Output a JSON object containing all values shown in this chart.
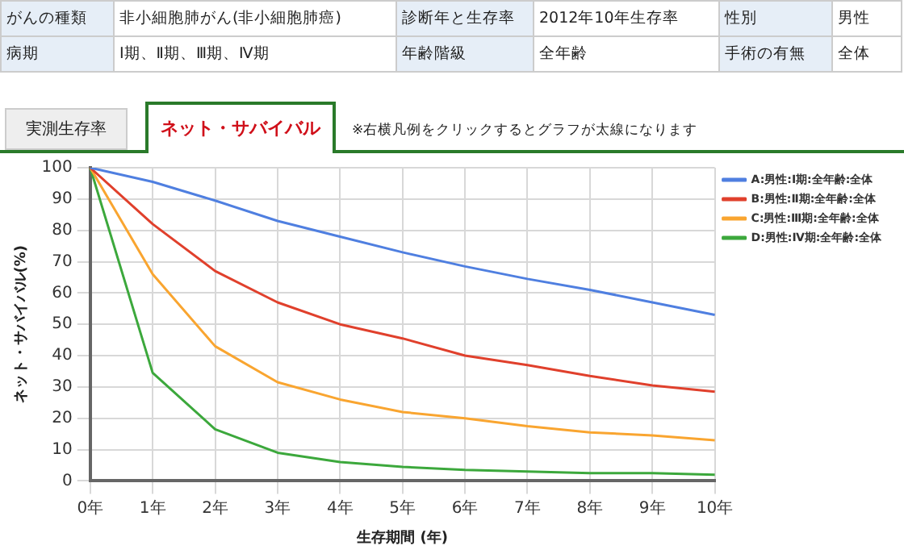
{
  "chart_data": {
    "type": "line",
    "xlabel": "生存期間 (年)",
    "ylabel": "ネット・サバイバル(%)",
    "categories": [
      "0年",
      "1年",
      "2年",
      "3年",
      "4年",
      "5年",
      "6年",
      "7年",
      "8年",
      "9年",
      "10年"
    ],
    "series": [
      {
        "name": "A:男性:Ⅰ期:全年齢:全体",
        "color": "#4f7fe0",
        "values": [
          100,
          95.5,
          89.5,
          83,
          78,
          73,
          68.5,
          64.5,
          61,
          57,
          53
        ]
      },
      {
        "name": "B:男性:Ⅱ期:全年齢:全体",
        "color": "#e0402c",
        "values": [
          100,
          82,
          67,
          57,
          50,
          45.5,
          40,
          37,
          33.5,
          30.5,
          28.5
        ]
      },
      {
        "name": "C:男性:Ⅲ期:全年齢:全体",
        "color": "#f9a530",
        "values": [
          100,
          66,
          43,
          31.5,
          26,
          22,
          20,
          17.5,
          15.5,
          14.5,
          13
        ]
      },
      {
        "name": "D:男性:Ⅳ期:全年齢:全体",
        "color": "#3ca83c",
        "values": [
          100,
          34.5,
          16.5,
          9,
          6,
          4.5,
          3.5,
          3,
          2.5,
          2.5,
          2
        ]
      }
    ],
    "ylim": [
      0,
      100
    ],
    "yticks": [
      0,
      10,
      20,
      30,
      40,
      50,
      60,
      70,
      80,
      90,
      100
    ],
    "grid": true,
    "legend": "top right",
    "marker": "none",
    "line_style": "solid",
    "annotations": [
      "がんの種類",
      "非小細胞肺がん(非小細胞肺癌)",
      "診断年と生存率",
      "2012年10年生存率",
      "性別",
      "男性",
      "病期",
      "Ⅰ期、Ⅱ期、Ⅲ期、Ⅳ期",
      "年齢階級",
      "全年齢",
      "手術の有無",
      "全体",
      "実測生存率",
      "ネット・サバイバル",
      "※右横凡例をクリックするとグラフが太線になります"
    ]
  }
}
